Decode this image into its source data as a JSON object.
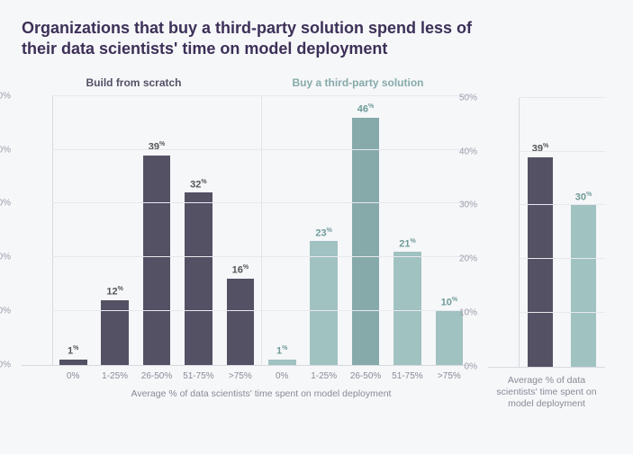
{
  "title": "Organizations that buy a third-party solution spend less of their data scientists' time on model deployment",
  "colors": {
    "build": "#545165",
    "buy": "#a0c2c1",
    "buy_emph": "#86aaaa",
    "grid": "#e7e9ee",
    "axis": "#d7d9e0",
    "text": "#8a8a97",
    "title": "#3d3058"
  },
  "y": {
    "max": 50,
    "ticks": [
      0,
      10,
      20,
      30,
      40,
      50
    ],
    "suffix": "%"
  },
  "main": {
    "subtitle_left": "Build from scratch",
    "subtitle_right": "Buy a third-party solution",
    "x_caption": "Average % of data scientists' time spent on model deployment",
    "series": [
      {
        "key": "build",
        "categories": [
          "0%",
          "1-25%",
          "26-50%",
          "51-75%",
          ">75%"
        ],
        "values": [
          1,
          12,
          39,
          32,
          16
        ],
        "bar_color_key": "build",
        "label_color": "#555"
      },
      {
        "key": "buy",
        "categories": [
          "0%",
          "1-25%",
          "26-50%",
          "51-75%",
          ">75%"
        ],
        "values": [
          1,
          23,
          46,
          21,
          10
        ],
        "bar_color_key": "buy",
        "label_color": "#6f9b99",
        "emphasize_index": 2
      }
    ]
  },
  "side": {
    "x_caption": "Average % of data scientists' time spent on model deployment",
    "bars": [
      {
        "value": 39,
        "color_key": "build",
        "label_color": "#555"
      },
      {
        "value": 30,
        "color_key": "buy",
        "label_color": "#6f9b99"
      }
    ]
  }
}
